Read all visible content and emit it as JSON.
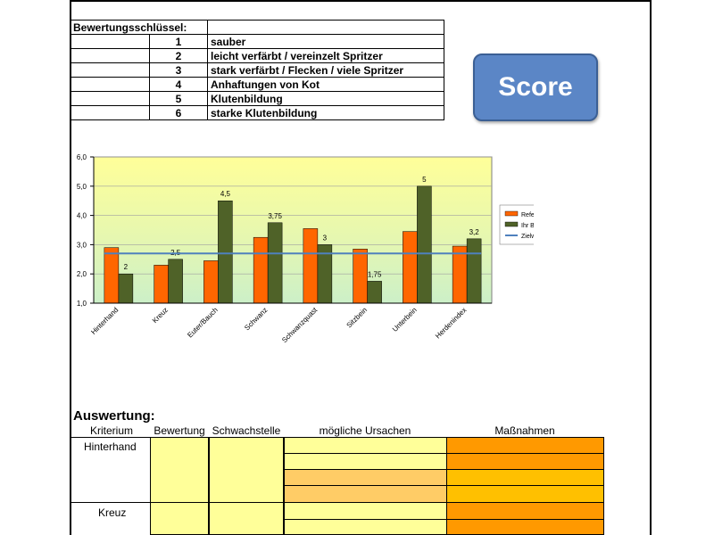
{
  "key": {
    "title": "Bewertungsschlüssel:",
    "rows": [
      {
        "score": "1",
        "label": "sauber"
      },
      {
        "score": "2",
        "label": "leicht verfärbt / vereinzelt Spritzer"
      },
      {
        "score": "3",
        "label": "stark verfärbt / Flecken / viele Spritzer"
      },
      {
        "score": "4",
        "label": "Anhaftungen von Kot"
      },
      {
        "score": "5",
        "label": "Klutenbildung"
      },
      {
        "score": "6",
        "label": "starke Klutenbildung"
      }
    ]
  },
  "score_button": {
    "label": "Score"
  },
  "chart_data": {
    "type": "bar",
    "categories": [
      "Hinterhand",
      "Kreuz",
      "Euter/Bauch",
      "Schwanz",
      "Schwanzquast",
      "Sitzbein",
      "Unterbein",
      "Herdenindex"
    ],
    "series": [
      {
        "name": "Referenzbetriebe",
        "values": [
          2.9,
          2.3,
          2.45,
          3.25,
          3.55,
          2.85,
          3.45,
          2.95
        ],
        "color": "#ff6600"
      },
      {
        "name": "Ihr Betrieb",
        "values": [
          2,
          2.5,
          4.5,
          3.75,
          3,
          1.75,
          5,
          3.2
        ],
        "color": "#4f6228",
        "labels": [
          "2",
          "2,5",
          "4,5",
          "3,75",
          "3",
          "1,75",
          "5",
          "3,2"
        ]
      }
    ],
    "target": {
      "name": "Zielwert",
      "value": 2.7,
      "color": "#4f81bd"
    },
    "ylim": [
      1,
      6
    ],
    "yticks": [
      "1,0",
      "2,0",
      "3,0",
      "4,0",
      "5,0",
      "6,0"
    ],
    "xlabel": "",
    "ylabel": "",
    "legend_position": "right",
    "background": "yellow-to-green gradient"
  },
  "evaluation": {
    "title": "Auswertung:",
    "headers": [
      "Kriterium",
      "Bewertung",
      "Schwachstelle",
      "mögliche Ursachen",
      "Maßnahmen"
    ],
    "criteria": [
      "Hinterhand",
      "Kreuz"
    ],
    "colors": {
      "yellow": "#ffff99",
      "light_orange": "#ffcc66",
      "orange": "#ff9900",
      "mid_orange": "#ffc000"
    }
  }
}
